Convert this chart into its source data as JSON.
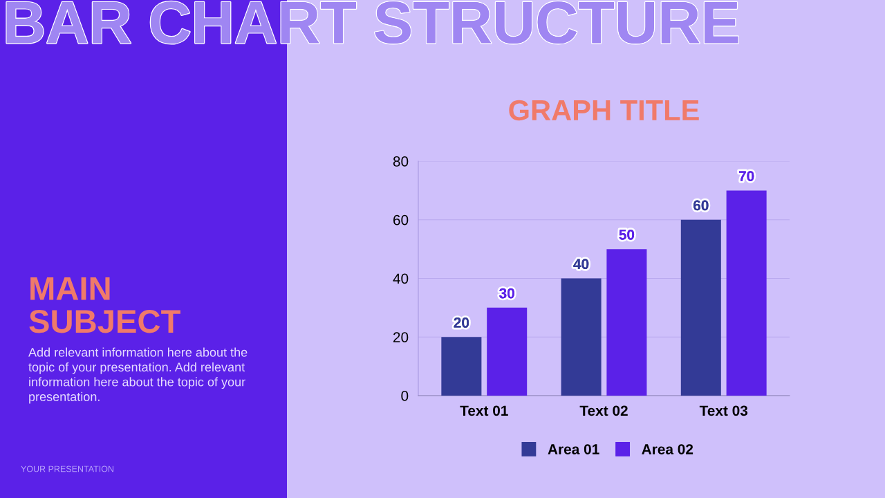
{
  "chart_data": {
    "type": "bar",
    "title": "GRAPH TITLE",
    "categories": [
      "Text 01",
      "Text 02",
      "Text 03"
    ],
    "series": [
      {
        "name": "Area 01",
        "color": "#333a96",
        "values": [
          20,
          40,
          60
        ]
      },
      {
        "name": "Area 02",
        "color": "#5b21e8",
        "values": [
          30,
          50,
          70
        ]
      }
    ],
    "ylim": [
      0,
      80
    ],
    "yticks": [
      0,
      20,
      40,
      60,
      80
    ],
    "grid": "y",
    "legend": "bottom",
    "data_labels": true,
    "annotations": [
      "BAR CHART STRUCTURE",
      "MAIN\nSUBJECT",
      "Add relevant information here about the\ntopic of your presentation. Add relevant\ninformation here about the topic of your\npresentation.",
      "YOUR PRESENTATION"
    ]
  }
}
